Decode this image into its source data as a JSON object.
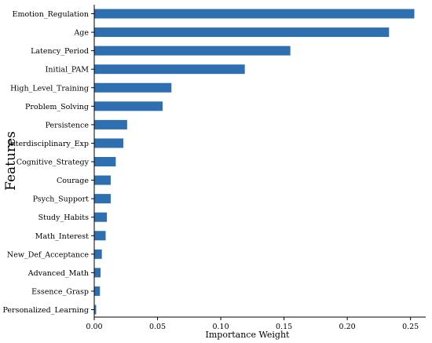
{
  "chart_data": {
    "type": "bar",
    "orientation": "horizontal",
    "title": "",
    "xlabel": "Importance Weight",
    "ylabel": "Features",
    "xlim": [
      0,
      0.262
    ],
    "xticks": [
      0.0,
      0.05,
      0.1,
      0.15,
      0.2,
      0.25
    ],
    "xtick_labels": [
      "0.00",
      "0.05",
      "0.10",
      "0.15",
      "0.20",
      "0.25"
    ],
    "grid": false,
    "bar_color": "#2e6fb2",
    "categories": [
      "Emotion_Regulation",
      "Age",
      "Latency_Period",
      "Initial_PAM",
      "High_Level_Training",
      "Problem_Solving",
      "Persistence",
      "Interdisciplinary_Exp",
      "Cognitive_Strategy",
      "Courage",
      "Psych_Support",
      "Study_Habits",
      "Math_Interest",
      "New_Def_Acceptance",
      "Advanced_Math",
      "Essence_Grasp",
      "Personalized_Learning"
    ],
    "values": [
      0.253,
      0.233,
      0.155,
      0.119,
      0.061,
      0.054,
      0.026,
      0.023,
      0.017,
      0.013,
      0.013,
      0.01,
      0.009,
      0.006,
      0.005,
      0.0045,
      0.0015
    ]
  }
}
